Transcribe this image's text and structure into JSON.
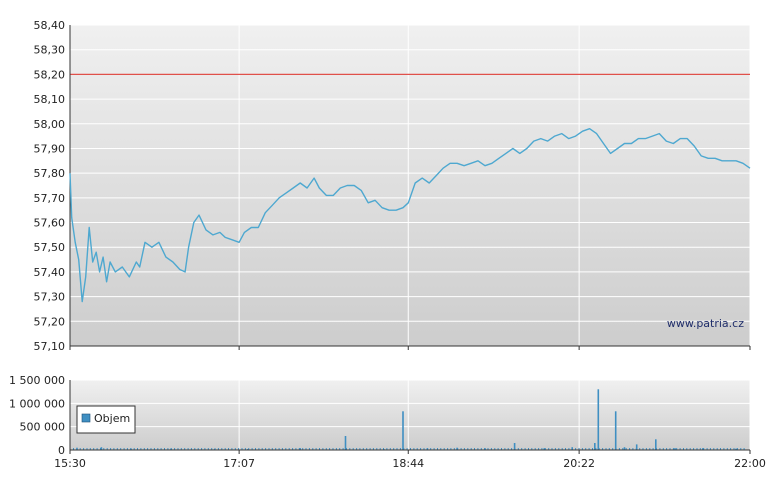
{
  "chart_data": [
    {
      "type": "line",
      "title": "",
      "xlabel": "",
      "ylabel": "",
      "xlim": [
        "15:30",
        "22:00"
      ],
      "ylim": [
        57.1,
        58.4
      ],
      "x_ticks": [
        "15:30",
        "17:07",
        "18:44",
        "20:22",
        "22:00"
      ],
      "y_ticks": [
        "57,10",
        "57,20",
        "57,30",
        "57,40",
        "57,50",
        "57,60",
        "57,70",
        "57,80",
        "57,90",
        "58,00",
        "58,10",
        "58,20",
        "58,30",
        "58,40"
      ],
      "grid": true,
      "reference_line": {
        "value": 58.2,
        "color": "#e0504a"
      },
      "series": [
        {
          "color": "#4ea8d0",
          "points": [
            [
              "15:30",
              57.8
            ],
            [
              "15:31",
              57.62
            ],
            [
              "15:33",
              57.52
            ],
            [
              "15:35",
              57.45
            ],
            [
              "15:37",
              57.28
            ],
            [
              "15:39",
              57.38
            ],
            [
              "15:41",
              57.58
            ],
            [
              "15:43",
              57.44
            ],
            [
              "15:45",
              57.48
            ],
            [
              "15:47",
              57.4
            ],
            [
              "15:49",
              57.46
            ],
            [
              "15:51",
              57.36
            ],
            [
              "15:53",
              57.44
            ],
            [
              "15:56",
              57.4
            ],
            [
              "16:00",
              57.42
            ],
            [
              "16:04",
              57.38
            ],
            [
              "16:08",
              57.44
            ],
            [
              "16:10",
              57.42
            ],
            [
              "16:13",
              57.52
            ],
            [
              "16:17",
              57.5
            ],
            [
              "16:21",
              57.52
            ],
            [
              "16:25",
              57.46
            ],
            [
              "16:29",
              57.44
            ],
            [
              "16:33",
              57.41
            ],
            [
              "16:36",
              57.4
            ],
            [
              "16:38",
              57.5
            ],
            [
              "16:41",
              57.6
            ],
            [
              "16:44",
              57.63
            ],
            [
              "16:48",
              57.57
            ],
            [
              "16:52",
              57.55
            ],
            [
              "16:56",
              57.56
            ],
            [
              "16:59",
              57.54
            ],
            [
              "17:03",
              57.53
            ],
            [
              "17:07",
              57.52
            ],
            [
              "17:10",
              57.56
            ],
            [
              "17:14",
              57.58
            ],
            [
              "17:18",
              57.58
            ],
            [
              "17:22",
              57.64
            ],
            [
              "17:26",
              57.67
            ],
            [
              "17:30",
              57.7
            ],
            [
              "17:34",
              57.72
            ],
            [
              "17:38",
              57.74
            ],
            [
              "17:42",
              57.76
            ],
            [
              "17:46",
              57.74
            ],
            [
              "17:50",
              57.78
            ],
            [
              "17:53",
              57.74
            ],
            [
              "17:57",
              57.71
            ],
            [
              "18:01",
              57.71
            ],
            [
              "18:05",
              57.74
            ],
            [
              "18:09",
              57.75
            ],
            [
              "18:13",
              57.75
            ],
            [
              "18:17",
              57.73
            ],
            [
              "18:21",
              57.68
            ],
            [
              "18:25",
              57.69
            ],
            [
              "18:29",
              57.66
            ],
            [
              "18:33",
              57.65
            ],
            [
              "18:37",
              57.65
            ],
            [
              "18:41",
              57.66
            ],
            [
              "18:44",
              57.68
            ],
            [
              "18:48",
              57.76
            ],
            [
              "18:52",
              57.78
            ],
            [
              "18:56",
              57.76
            ],
            [
              "19:00",
              57.79
            ],
            [
              "19:04",
              57.82
            ],
            [
              "19:08",
              57.84
            ],
            [
              "19:12",
              57.84
            ],
            [
              "19:16",
              57.83
            ],
            [
              "19:20",
              57.84
            ],
            [
              "19:24",
              57.85
            ],
            [
              "19:28",
              57.83
            ],
            [
              "19:32",
              57.84
            ],
            [
              "19:36",
              57.86
            ],
            [
              "19:40",
              57.88
            ],
            [
              "19:44",
              57.9
            ],
            [
              "19:48",
              57.88
            ],
            [
              "19:52",
              57.9
            ],
            [
              "19:56",
              57.93
            ],
            [
              "20:00",
              57.94
            ],
            [
              "20:04",
              57.93
            ],
            [
              "20:08",
              57.95
            ],
            [
              "20:12",
              57.96
            ],
            [
              "20:16",
              57.94
            ],
            [
              "20:20",
              57.95
            ],
            [
              "20:24",
              57.97
            ],
            [
              "20:28",
              57.98
            ],
            [
              "20:32",
              57.96
            ],
            [
              "20:36",
              57.92
            ],
            [
              "20:40",
              57.88
            ],
            [
              "20:44",
              57.9
            ],
            [
              "20:48",
              57.92
            ],
            [
              "20:52",
              57.92
            ],
            [
              "20:56",
              57.94
            ],
            [
              "21:00",
              57.94
            ],
            [
              "21:04",
              57.95
            ],
            [
              "21:08",
              57.96
            ],
            [
              "21:12",
              57.93
            ],
            [
              "21:16",
              57.92
            ],
            [
              "21:20",
              57.94
            ],
            [
              "21:24",
              57.94
            ],
            [
              "21:28",
              57.91
            ],
            [
              "21:32",
              57.87
            ],
            [
              "21:36",
              57.86
            ],
            [
              "21:40",
              57.86
            ],
            [
              "21:44",
              57.85
            ],
            [
              "21:48",
              57.85
            ],
            [
              "21:52",
              57.85
            ],
            [
              "21:56",
              57.84
            ],
            [
              "22:00",
              57.82
            ]
          ]
        }
      ],
      "watermark": "www.patria.cz",
      "line_color": "#4ea8d0"
    },
    {
      "type": "bar",
      "title": "",
      "xlabel": "",
      "ylabel": "",
      "xlim": [
        "15:30",
        "22:00"
      ],
      "ylim": [
        0,
        1500000
      ],
      "x_ticks": [
        "15:30",
        "17:07",
        "18:44",
        "20:22",
        "22:00"
      ],
      "y_ticks": [
        "0",
        "500 000",
        "1 000 000",
        "1 500 000"
      ],
      "grid": true,
      "legend": {
        "position": "left",
        "entries": [
          "Objem"
        ]
      },
      "series": [
        {
          "name": "Objem",
          "color": "#3f8fc2",
          "points": [
            [
              "15:34",
              50000
            ],
            [
              "15:48",
              60000
            ],
            [
              "16:05",
              30000
            ],
            [
              "16:28",
              30000
            ],
            [
              "16:53",
              20000
            ],
            [
              "17:12",
              20000
            ],
            [
              "17:42",
              40000
            ],
            [
              "18:08",
              300000
            ],
            [
              "18:30",
              20000
            ],
            [
              "18:41",
              830000
            ],
            [
              "18:55",
              40000
            ],
            [
              "19:12",
              50000
            ],
            [
              "19:28",
              40000
            ],
            [
              "19:45",
              150000
            ],
            [
              "20:02",
              40000
            ],
            [
              "20:18",
              60000
            ],
            [
              "20:31",
              150000
            ],
            [
              "20:33",
              1300000
            ],
            [
              "20:43",
              830000
            ],
            [
              "20:48",
              60000
            ],
            [
              "20:55",
              120000
            ],
            [
              "21:06",
              230000
            ],
            [
              "21:17",
              40000
            ],
            [
              "21:33",
              40000
            ],
            [
              "21:52",
              30000
            ]
          ]
        }
      ]
    }
  ]
}
